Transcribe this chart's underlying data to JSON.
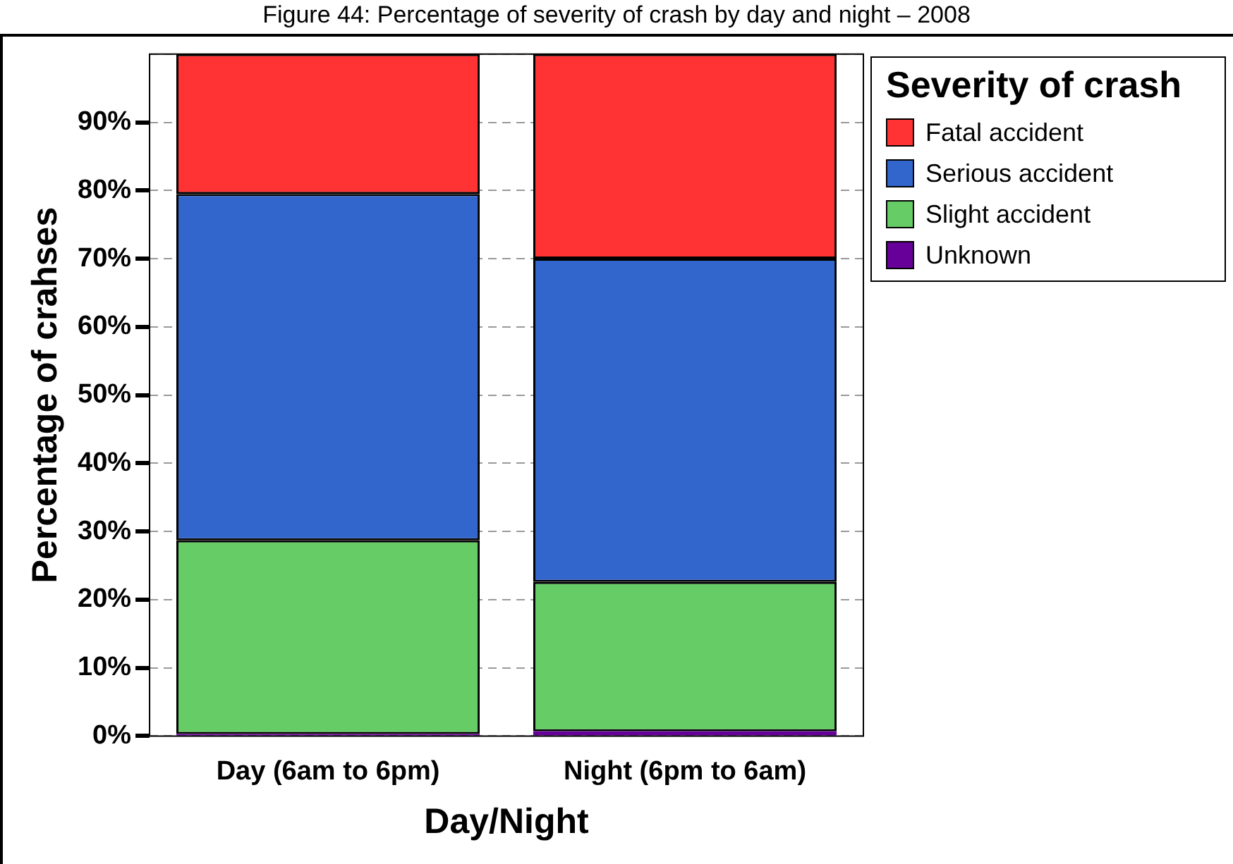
{
  "chart_data": {
    "type": "bar",
    "title": "Figure 44: Percentage of severity of crash by day and night – 2008",
    "xlabel": "Day/Night",
    "ylabel": "Percentage of crahses",
    "legend_title": "Severity of crash",
    "categories": [
      "Day (6am to 6pm)",
      "Night (6pm to 6am)"
    ],
    "series": [
      {
        "name": "Unknown",
        "color": "#660099",
        "values": [
          0.3,
          0.7
        ]
      },
      {
        "name": "Slight accident",
        "color": "#66cc66",
        "values": [
          28.4,
          21.9
        ]
      },
      {
        "name": "Serious accident",
        "color": "#3366cc",
        "values": [
          50.8,
          47.4
        ]
      },
      {
        "name": "Fatal accident",
        "color": "#ff3333",
        "values": [
          20.5,
          30.0
        ]
      }
    ],
    "stacked": true,
    "ylim": [
      0,
      100
    ],
    "yticks": [
      {
        "value": 0,
        "label": "0%"
      },
      {
        "value": 10,
        "label": "10%"
      },
      {
        "value": 20,
        "label": "20%"
      },
      {
        "value": 30,
        "label": "30%"
      },
      {
        "value": 40,
        "label": "40%"
      },
      {
        "value": 50,
        "label": "50%"
      },
      {
        "value": 60,
        "label": "60%"
      },
      {
        "value": 70,
        "label": "70%"
      },
      {
        "value": 80,
        "label": "80%"
      },
      {
        "value": 90,
        "label": "90%"
      },
      {
        "value": 100,
        "label": null
      }
    ],
    "grid": "y",
    "legend": "top right"
  }
}
